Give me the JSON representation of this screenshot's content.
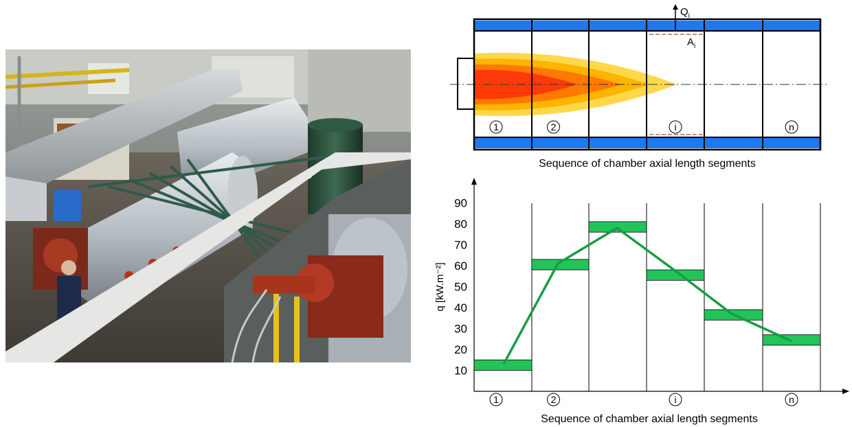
{
  "photo": {
    "description_icon": "test-furnace-photo"
  },
  "chamber": {
    "heat_flow_label": "Q",
    "heat_flow_sub": "i",
    "area_label": "A",
    "area_sub": "i",
    "segment_labels": [
      "1",
      "2",
      "",
      "i",
      "",
      "n"
    ],
    "caption": "Sequence of chamber axial length segments",
    "colors": {
      "cooling_jacket": "#1e78f0",
      "flame_outer": "#ffd84a",
      "flame_mid1": "#ffb400",
      "flame_mid2": "#ff7a00",
      "flame_core": "#ff3a0a"
    }
  },
  "chart_data": {
    "type": "line",
    "title": "",
    "xlabel": "Sequence of chamber axial length segments",
    "ylabel": "q [kW.m⁻²]",
    "y_ticks": [
      10,
      20,
      30,
      40,
      50,
      60,
      70,
      80,
      90
    ],
    "ylim": [
      0,
      100
    ],
    "segment_labels": [
      "1",
      "2",
      "",
      "i",
      "",
      "n"
    ],
    "segments": [
      1,
      2,
      3,
      4,
      5,
      6
    ],
    "bar_ranges": [
      [
        10,
        15
      ],
      [
        58,
        63
      ],
      [
        76,
        81
      ],
      [
        53,
        58
      ],
      [
        34,
        39
      ],
      [
        22,
        27
      ]
    ],
    "line_points": [
      [
        1,
        13
      ],
      [
        2,
        61
      ],
      [
        3,
        78
      ],
      [
        4,
        57
      ],
      [
        5,
        37
      ],
      [
        6,
        24
      ]
    ],
    "grid": false,
    "colors": {
      "bar": "#22c45a",
      "line": "#1a9c44"
    }
  }
}
